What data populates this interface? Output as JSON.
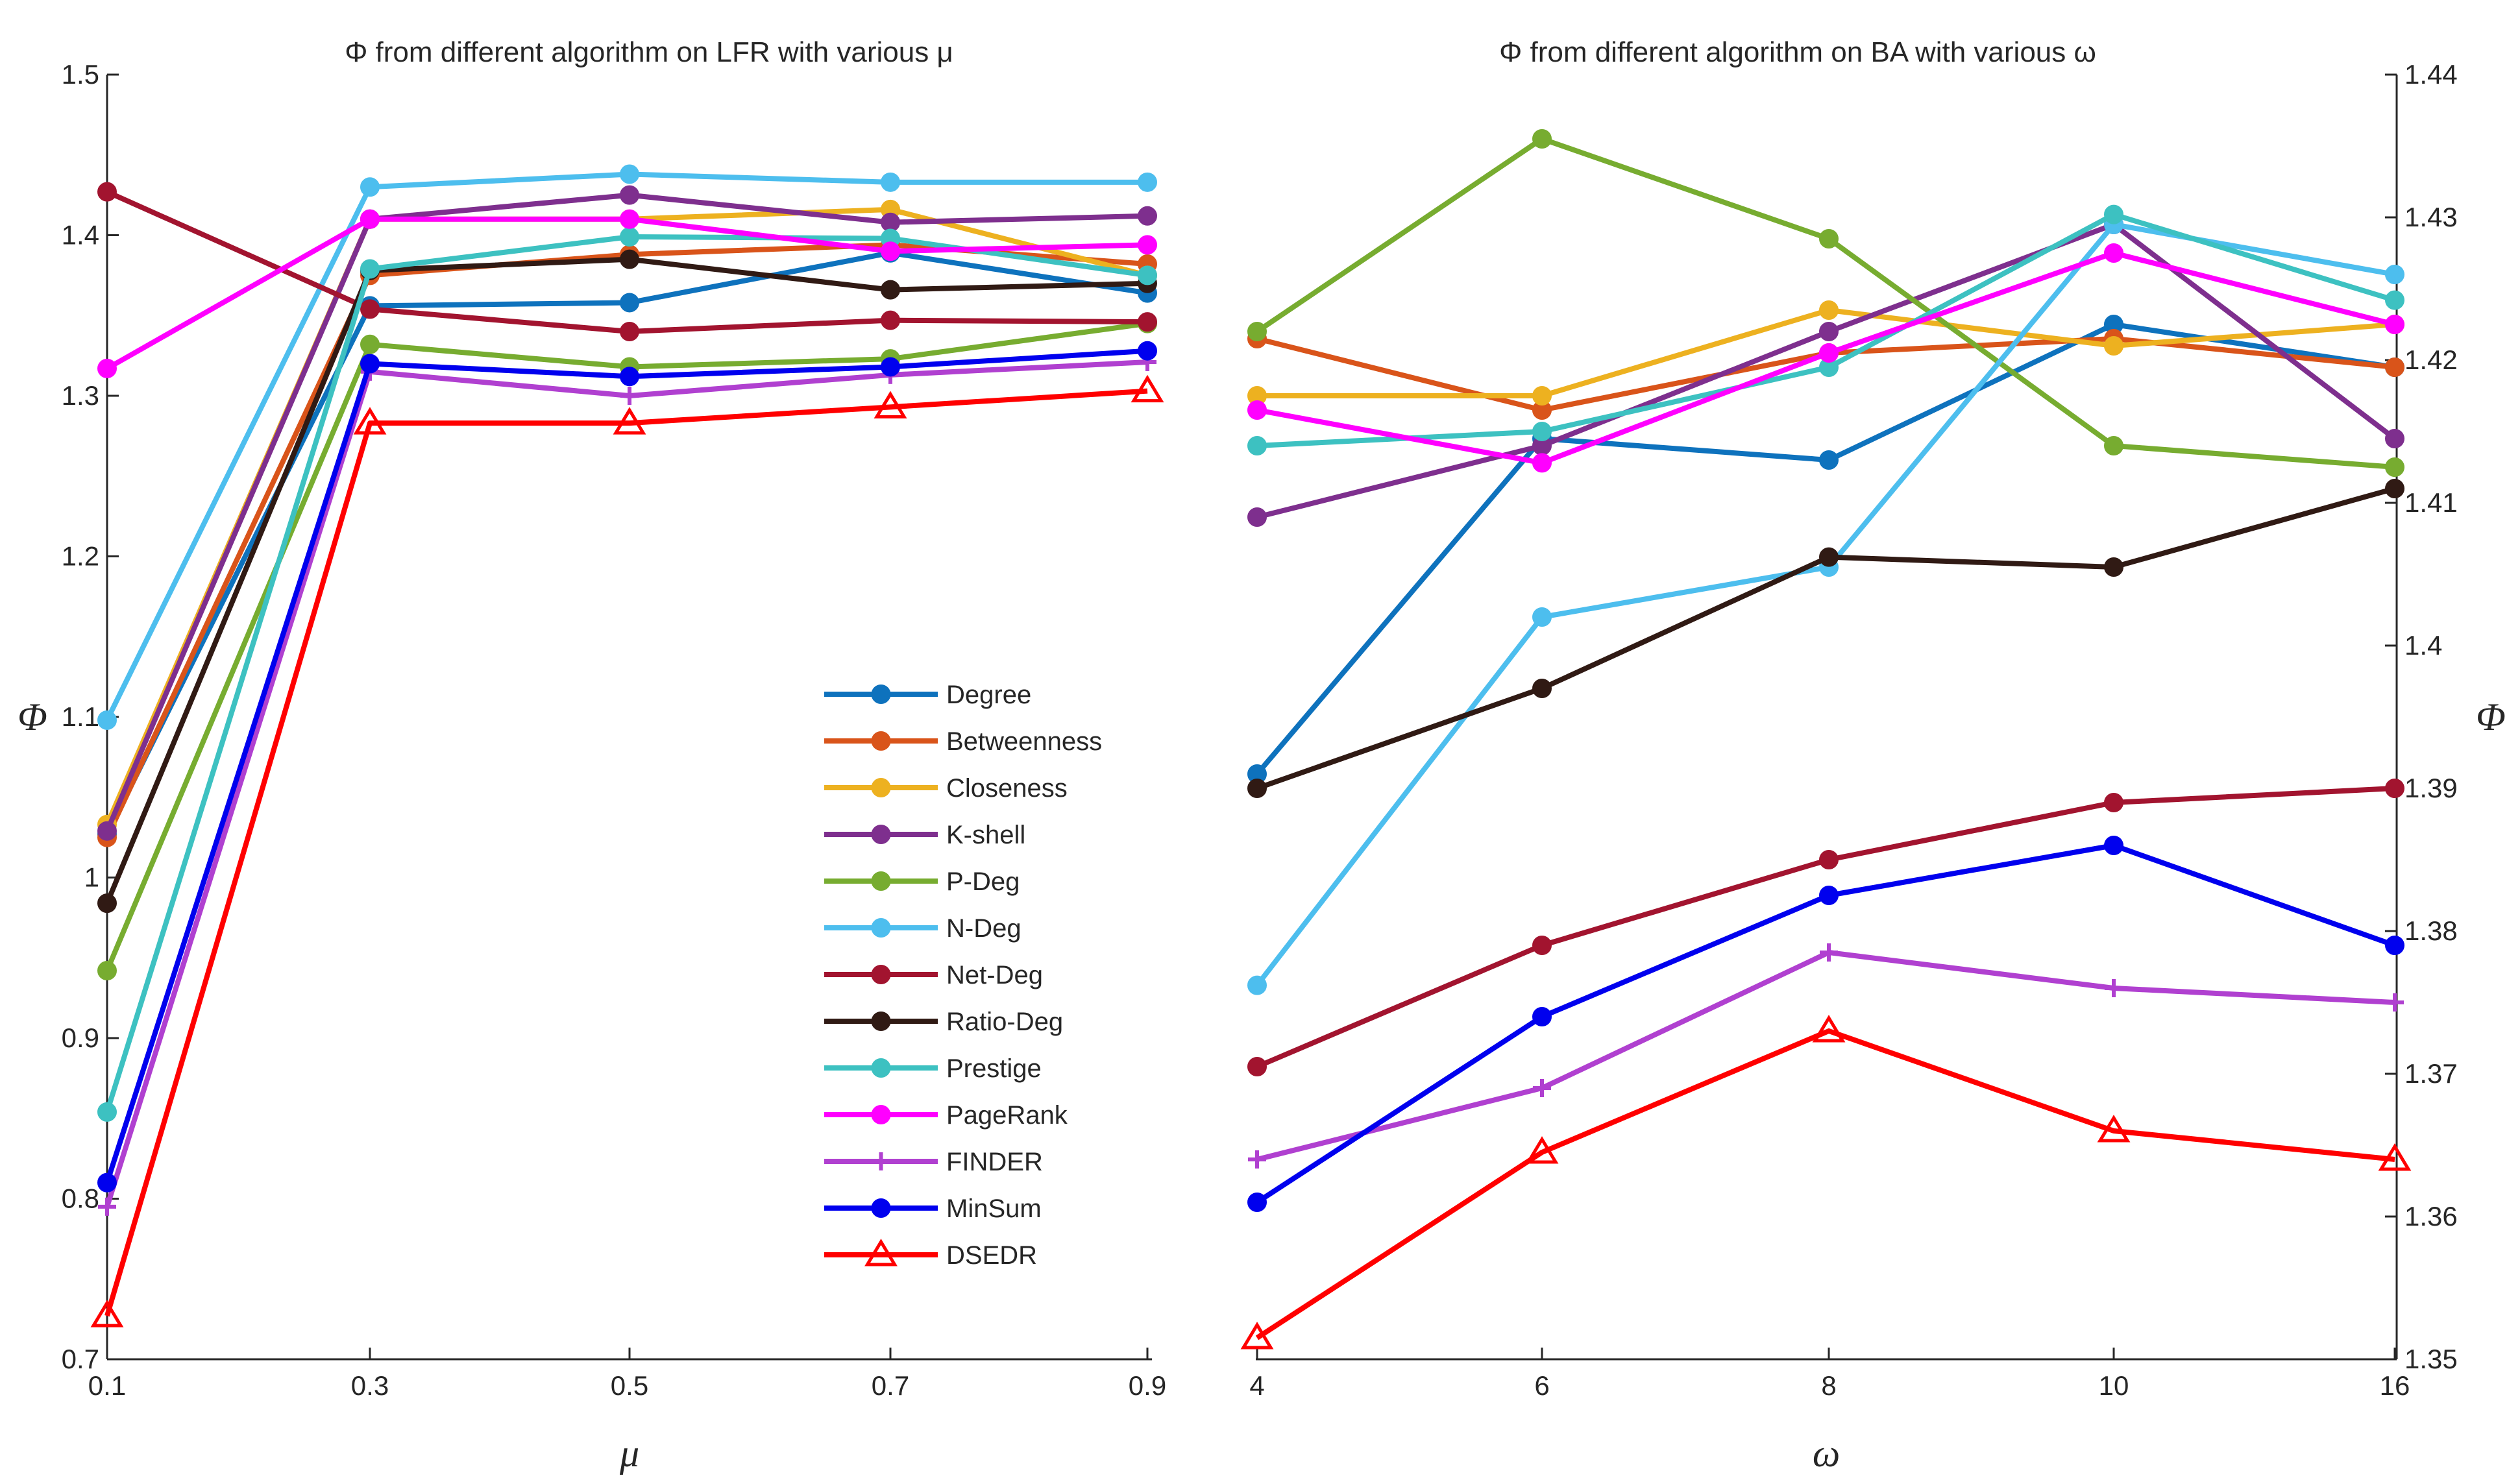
{
  "chart_data": [
    {
      "type": "line",
      "title": "Φ from different algorithm on LFR with various μ",
      "xlabel": "μ",
      "ylabel": "Φ",
      "ylim": [
        0.7,
        1.5
      ],
      "x": [
        "0.1",
        "0.3",
        "0.5",
        "0.7",
        "0.9"
      ],
      "yticks": [
        "0.7",
        "0.8",
        "0.9",
        "1",
        "1.1",
        "1.2",
        "1.3",
        "1.4",
        "1.5"
      ],
      "series": [
        {
          "name": "Degree",
          "color": "#0E72BD",
          "marker": "circle",
          "values": [
            1.027,
            1.356,
            1.358,
            1.389,
            1.364
          ]
        },
        {
          "name": "Betweenness",
          "color": "#D9541A",
          "marker": "circle",
          "values": [
            1.025,
            1.375,
            1.388,
            1.394,
            1.382
          ]
        },
        {
          "name": "Closeness",
          "color": "#EDB120",
          "marker": "circle",
          "values": [
            1.033,
            1.41,
            1.41,
            1.416,
            1.375
          ]
        },
        {
          "name": "K-shell",
          "color": "#7E2F8E",
          "marker": "circle",
          "values": [
            1.029,
            1.41,
            1.425,
            1.408,
            1.412
          ]
        },
        {
          "name": "P-Deg",
          "color": "#77AC30",
          "marker": "circle",
          "values": [
            0.942,
            1.332,
            1.318,
            1.323,
            1.345
          ]
        },
        {
          "name": "N-Deg",
          "color": "#4DBEEE",
          "marker": "circle",
          "values": [
            1.098,
            1.43,
            1.438,
            1.433,
            1.433
          ]
        },
        {
          "name": "Net-Deg",
          "color": "#A2142F",
          "marker": "circle",
          "values": [
            1.427,
            1.354,
            1.34,
            1.347,
            1.346
          ]
        },
        {
          "name": "Ratio-Deg",
          "color": "#301A14",
          "marker": "circle",
          "values": [
            0.984,
            1.378,
            1.385,
            1.366,
            1.37
          ]
        },
        {
          "name": "Prestige",
          "color": "#3DC1C1",
          "marker": "circle",
          "values": [
            0.854,
            1.379,
            1.399,
            1.398,
            1.375
          ]
        },
        {
          "name": "PageRank",
          "color": "#FF00FF",
          "marker": "circle",
          "values": [
            1.317,
            1.41,
            1.41,
            1.39,
            1.394
          ]
        },
        {
          "name": "FINDER",
          "color": "#B040D0",
          "marker": "plus",
          "values": [
            0.795,
            1.315,
            1.3,
            1.313,
            1.321
          ]
        },
        {
          "name": "MinSum",
          "color": "#0000EE",
          "marker": "circle",
          "values": [
            0.81,
            1.32,
            1.312,
            1.318,
            1.328
          ]
        },
        {
          "name": "DSEDR",
          "color": "#FF0000",
          "marker": "triangle",
          "values": [
            0.727,
            1.283,
            1.283,
            1.293,
            1.303
          ]
        }
      ]
    },
    {
      "type": "line",
      "title": "Φ from different algorithm on BA with various ω",
      "xlabel": "ω",
      "ylabel": "Φ",
      "ylim": [
        1.35,
        1.44
      ],
      "x": [
        "4",
        "6",
        "8",
        "10",
        "16"
      ],
      "yticks": [
        "1.35",
        "1.36",
        "1.37",
        "1.38",
        "1.39",
        "1.4",
        "1.41",
        "1.42",
        "1.43",
        "1.44"
      ],
      "series": [
        {
          "name": "Degree",
          "color": "#0E72BD",
          "marker": "circle",
          "values": [
            1.391,
            1.4145,
            1.413,
            1.4225,
            1.4195
          ]
        },
        {
          "name": "Betweenness",
          "color": "#D9541A",
          "marker": "circle",
          "values": [
            1.4215,
            1.4165,
            1.4205,
            1.4215,
            1.4195
          ]
        },
        {
          "name": "Closeness",
          "color": "#EDB120",
          "marker": "circle",
          "values": [
            1.4175,
            1.4175,
            1.4235,
            1.421,
            1.4225
          ]
        },
        {
          "name": "K-shell",
          "color": "#7E2F8E",
          "marker": "circle",
          "values": [
            1.409,
            1.414,
            1.422,
            1.4295,
            1.4145
          ]
        },
        {
          "name": "P-Deg",
          "color": "#77AC30",
          "marker": "circle",
          "values": [
            1.422,
            1.4355,
            1.4285,
            1.414,
            1.4125
          ]
        },
        {
          "name": "N-Deg",
          "color": "#4DBEEE",
          "marker": "circle",
          "values": [
            1.3762,
            1.402,
            1.4055,
            1.4295,
            1.426
          ]
        },
        {
          "name": "Net-Deg",
          "color": "#A2142F",
          "marker": "circle",
          "values": [
            1.3705,
            1.379,
            1.385,
            1.389,
            1.39
          ]
        },
        {
          "name": "Ratio-Deg",
          "color": "#301A14",
          "marker": "circle",
          "values": [
            1.39,
            1.397,
            1.4062,
            1.4055,
            1.411
          ]
        },
        {
          "name": "Prestige",
          "color": "#3DC1C1",
          "marker": "circle",
          "values": [
            1.414,
            1.415,
            1.4195,
            1.4302,
            1.4242
          ]
        },
        {
          "name": "PageRank",
          "color": "#FF00FF",
          "marker": "circle",
          "values": [
            1.4165,
            1.4128,
            1.4205,
            1.4275,
            1.4225
          ]
        },
        {
          "name": "FINDER",
          "color": "#B040D0",
          "marker": "plus",
          "values": [
            1.364,
            1.369,
            1.3785,
            1.376,
            1.375
          ]
        },
        {
          "name": "MinSum",
          "color": "#0000EE",
          "marker": "circle",
          "values": [
            1.361,
            1.374,
            1.3825,
            1.386,
            1.379
          ]
        },
        {
          "name": "DSEDR",
          "color": "#FF0000",
          "marker": "triangle",
          "values": [
            1.3515,
            1.3645,
            1.373,
            1.366,
            1.364
          ]
        }
      ]
    }
  ]
}
